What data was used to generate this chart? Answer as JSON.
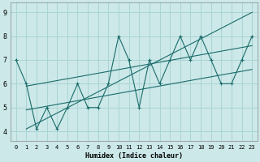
{
  "xlabel": "Humidex (Indice chaleur)",
  "bg_color": "#cce8e8",
  "grid_color": "#aad4d4",
  "line_color": "#1a6b6b",
  "xlim": [
    -0.5,
    23.5
  ],
  "ylim": [
    3.6,
    9.4
  ],
  "yticks": [
    4,
    5,
    6,
    7,
    8,
    9
  ],
  "xticks": [
    0,
    1,
    2,
    3,
    4,
    5,
    6,
    7,
    8,
    9,
    10,
    11,
    12,
    13,
    14,
    15,
    16,
    17,
    18,
    19,
    20,
    21,
    22,
    23
  ],
  "series1_x": [
    0,
    1,
    2,
    3,
    4,
    5,
    6,
    7,
    8,
    9,
    10,
    11,
    12,
    13,
    14,
    15,
    16,
    17,
    18,
    19,
    20,
    21,
    22,
    23
  ],
  "series1_y": [
    7.0,
    6.0,
    4.1,
    5.0,
    4.1,
    5.0,
    6.0,
    5.0,
    5.0,
    6.0,
    8.0,
    7.0,
    5.0,
    7.0,
    6.0,
    7.0,
    8.0,
    7.0,
    8.0,
    7.0,
    6.0,
    6.0,
    7.0,
    8.0
  ],
  "line2_x": [
    1,
    23
  ],
  "line2_y": [
    4.1,
    9.0
  ],
  "line3_x": [
    1,
    23
  ],
  "line3_y": [
    4.9,
    6.6
  ],
  "line4_x": [
    1,
    23
  ],
  "line4_y": [
    5.9,
    7.6
  ]
}
